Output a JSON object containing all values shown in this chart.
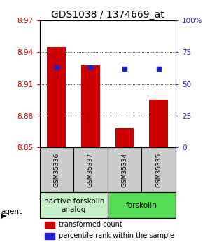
{
  "title": "GDS1038 / 1374669_at",
  "samples": [
    "GSM35336",
    "GSM35337",
    "GSM35334",
    "GSM35335"
  ],
  "bar_values": [
    8.945,
    8.928,
    8.868,
    8.895
  ],
  "percentile_values": [
    63,
    63,
    62,
    62
  ],
  "y_min": 8.85,
  "y_max": 8.97,
  "y_ticks": [
    8.85,
    8.88,
    8.91,
    8.94,
    8.97
  ],
  "right_y_ticks": [
    0,
    25,
    50,
    75,
    100
  ],
  "bar_color": "#cc0000",
  "dot_color": "#2222cc",
  "bar_width": 0.55,
  "agent_groups": [
    {
      "label": "inactive forskolin\nanalog",
      "samples": [
        0,
        1
      ],
      "color": "#c8f0c8"
    },
    {
      "label": "forskolin",
      "samples": [
        2,
        3
      ],
      "color": "#55dd55"
    }
  ],
  "title_fontsize": 10,
  "tick_fontsize": 7.5,
  "legend_fontsize": 7,
  "agent_fontsize": 7.5,
  "sample_fontsize": 6.5,
  "background_color": "#ffffff",
  "sample_box_color": "#cccccc"
}
